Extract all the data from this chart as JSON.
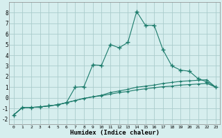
{
  "xlabel": "Humidex (Indice chaleur)",
  "background_color": "#d6eeee",
  "grid_color": "#aacccc",
  "line_color": "#1a7a6a",
  "xlim": [
    -0.5,
    23.5
  ],
  "ylim": [
    -2.5,
    9.0
  ],
  "xticks": [
    0,
    1,
    2,
    3,
    4,
    5,
    6,
    7,
    8,
    9,
    10,
    11,
    12,
    13,
    14,
    15,
    16,
    17,
    18,
    19,
    20,
    21,
    22,
    23
  ],
  "yticks": [
    -2,
    -1,
    0,
    1,
    2,
    3,
    4,
    5,
    6,
    7,
    8
  ],
  "series1_x": [
    0,
    1,
    2,
    3,
    4,
    5,
    6,
    7,
    8,
    9,
    10,
    11,
    12,
    13,
    14,
    15,
    16,
    17,
    18,
    19,
    20,
    21,
    22,
    23
  ],
  "series1_y": [
    -1.6,
    -0.9,
    -0.9,
    -0.85,
    -0.75,
    -0.65,
    -0.45,
    -0.25,
    -0.05,
    0.1,
    0.2,
    0.35,
    0.5,
    0.6,
    0.75,
    0.85,
    0.95,
    1.05,
    1.1,
    1.2,
    1.25,
    1.3,
    1.35,
    1.0
  ],
  "series2_x": [
    0,
    1,
    2,
    3,
    4,
    5,
    6,
    7,
    8,
    9,
    10,
    11,
    12,
    13,
    14,
    15,
    16,
    17,
    18,
    19,
    20,
    21,
    22,
    23
  ],
  "series2_y": [
    -1.6,
    -0.9,
    -0.9,
    -0.85,
    -0.75,
    -0.65,
    -0.45,
    -0.25,
    -0.05,
    0.1,
    0.25,
    0.5,
    0.65,
    0.8,
    1.0,
    1.1,
    1.2,
    1.35,
    1.45,
    1.55,
    1.6,
    1.65,
    1.7,
    1.0
  ],
  "series3_x": [
    0,
    1,
    2,
    3,
    4,
    5,
    6,
    7,
    8,
    9,
    10,
    11,
    12,
    13,
    14,
    15,
    16,
    17,
    18,
    19,
    20,
    21,
    22,
    23
  ],
  "series3_y": [
    -1.6,
    -0.9,
    -0.9,
    -0.85,
    -0.75,
    -0.65,
    -0.45,
    1.0,
    1.05,
    3.1,
    3.05,
    5.0,
    4.7,
    5.2,
    8.1,
    6.8,
    6.8,
    4.5,
    3.0,
    2.6,
    2.5,
    1.8,
    1.5,
    1.0
  ]
}
